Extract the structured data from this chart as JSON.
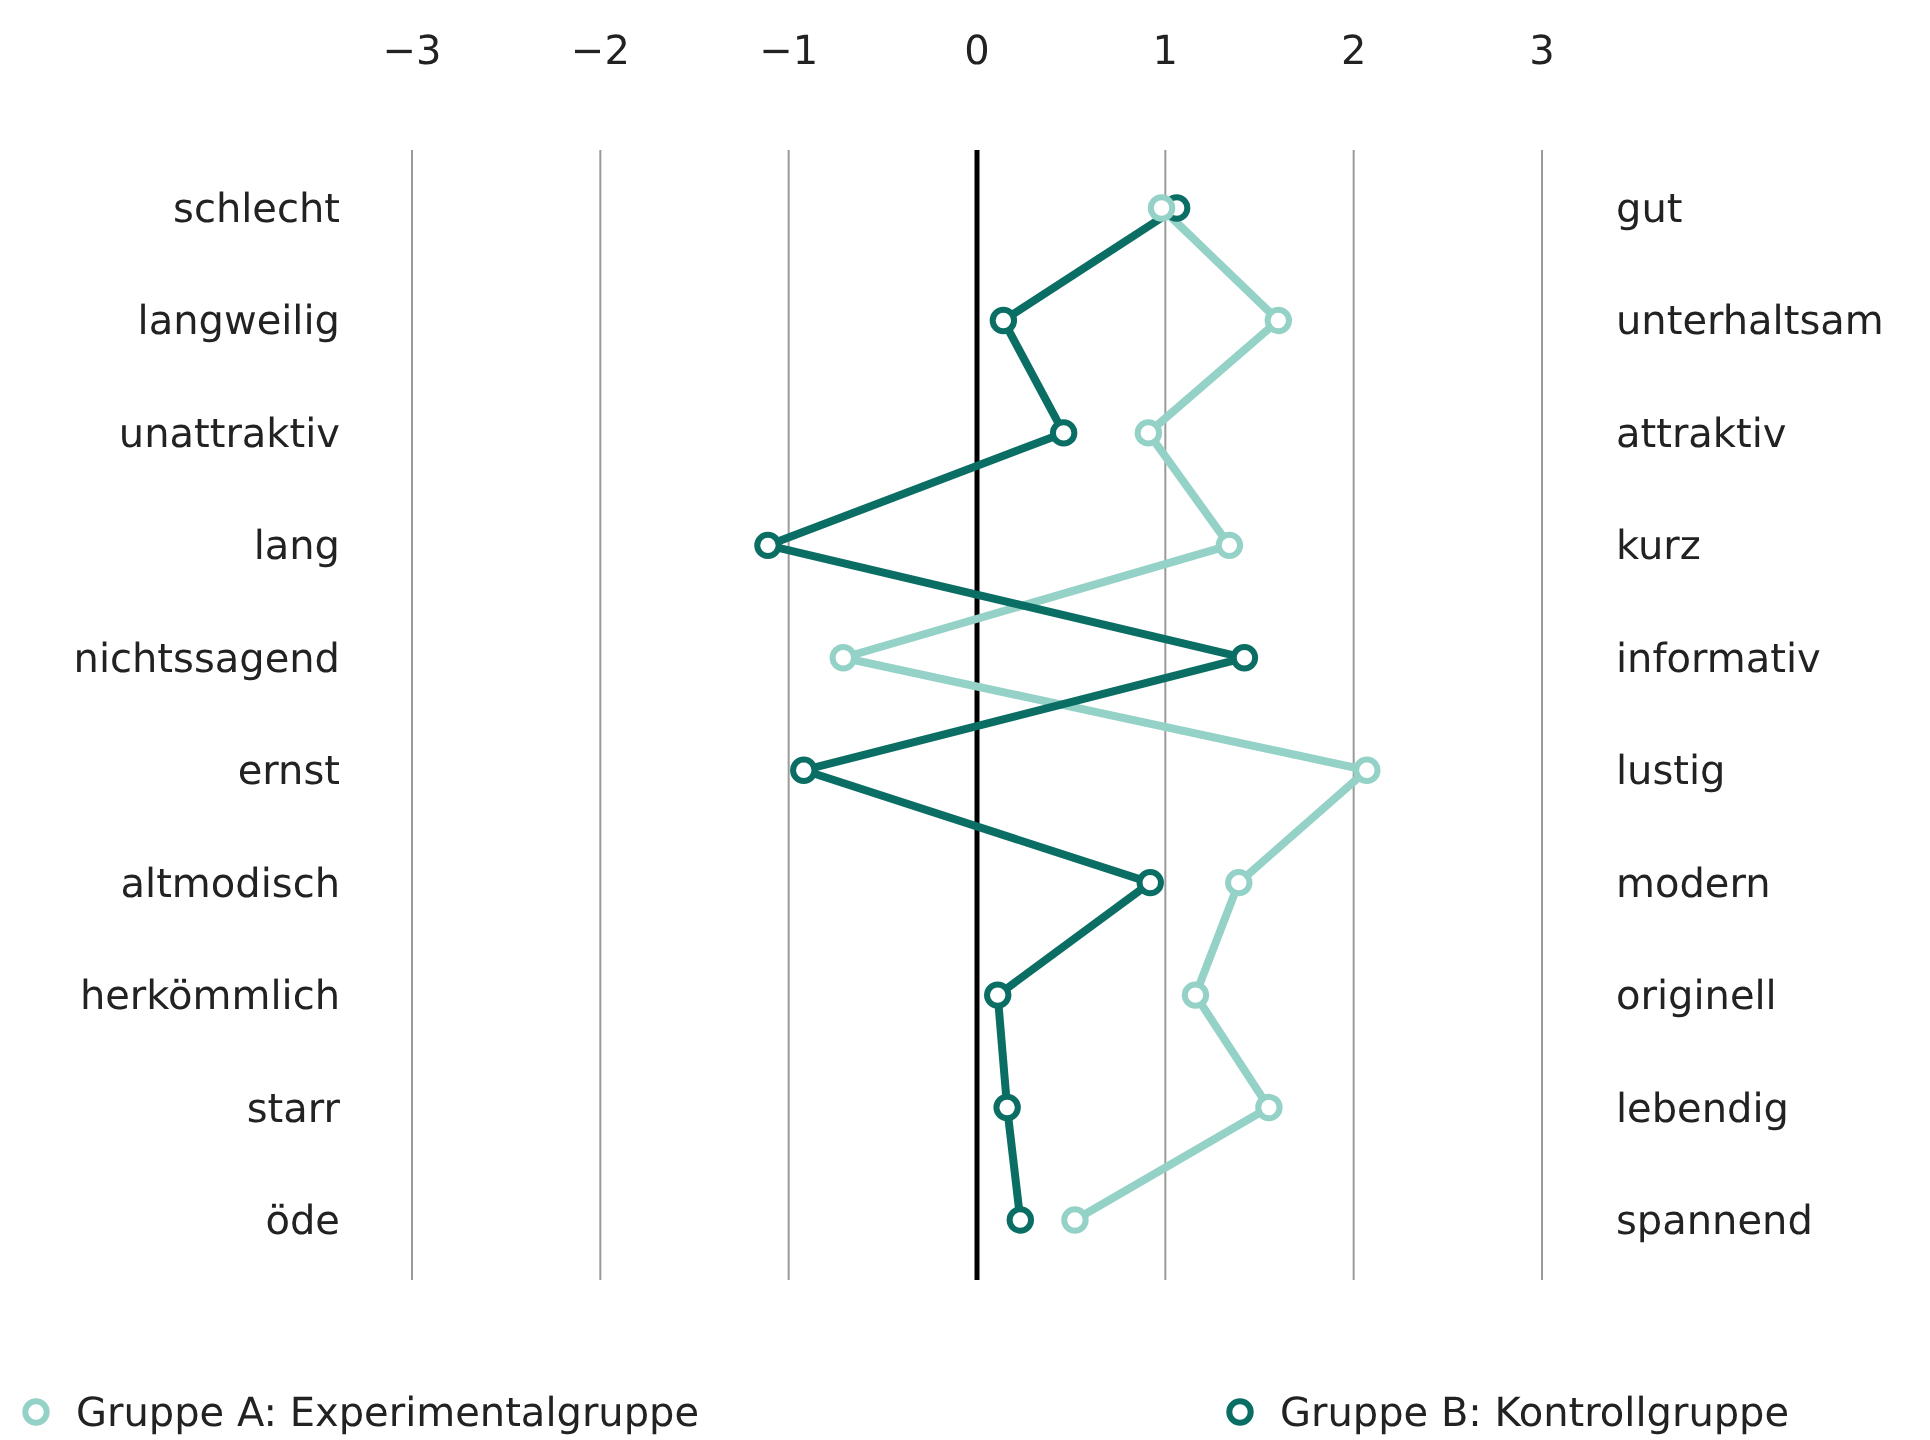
{
  "chart_data": {
    "type": "line",
    "orientation": "horizontal",
    "categories": [
      "schlecht",
      "langweilig",
      "unattraktiv",
      "lang",
      "nichtssagend",
      "ernst",
      "altmodisch",
      "herkömmlich",
      "starr",
      "öde"
    ],
    "y2_categories": [
      "gut",
      "unterhaltsam",
      "attraktiv",
      "kurz",
      "informativ",
      "lustig",
      "modern",
      "originell",
      "lebendig",
      "spannend"
    ],
    "xlim": [
      -3,
      3
    ],
    "xticks": [
      {
        "value": -3,
        "label": "−3"
      },
      {
        "value": -2,
        "label": "−2"
      },
      {
        "value": -1,
        "label": "−1"
      },
      0,
      1,
      2,
      3
    ],
    "grid": "x",
    "legend": "bottom",
    "marker": "circle",
    "line_style": "solid",
    "ref_lines": [
      {
        "axis": "x",
        "value": 0,
        "color": "#000000"
      }
    ],
    "series": [
      {
        "name": "Gruppe A: Experimentalgruppe",
        "color": "#94d1c6",
        "values": [
          0.98,
          1.6,
          0.91,
          1.34,
          -0.71,
          2.07,
          1.39,
          1.16,
          1.55,
          0.52
        ]
      },
      {
        "name": "Gruppe B: Kontrollgruppe",
        "color": "#0b6e64",
        "values": [
          1.06,
          0.14,
          0.46,
          -1.11,
          1.42,
          -0.92,
          0.92,
          0.11,
          0.16,
          0.23
        ]
      }
    ]
  }
}
